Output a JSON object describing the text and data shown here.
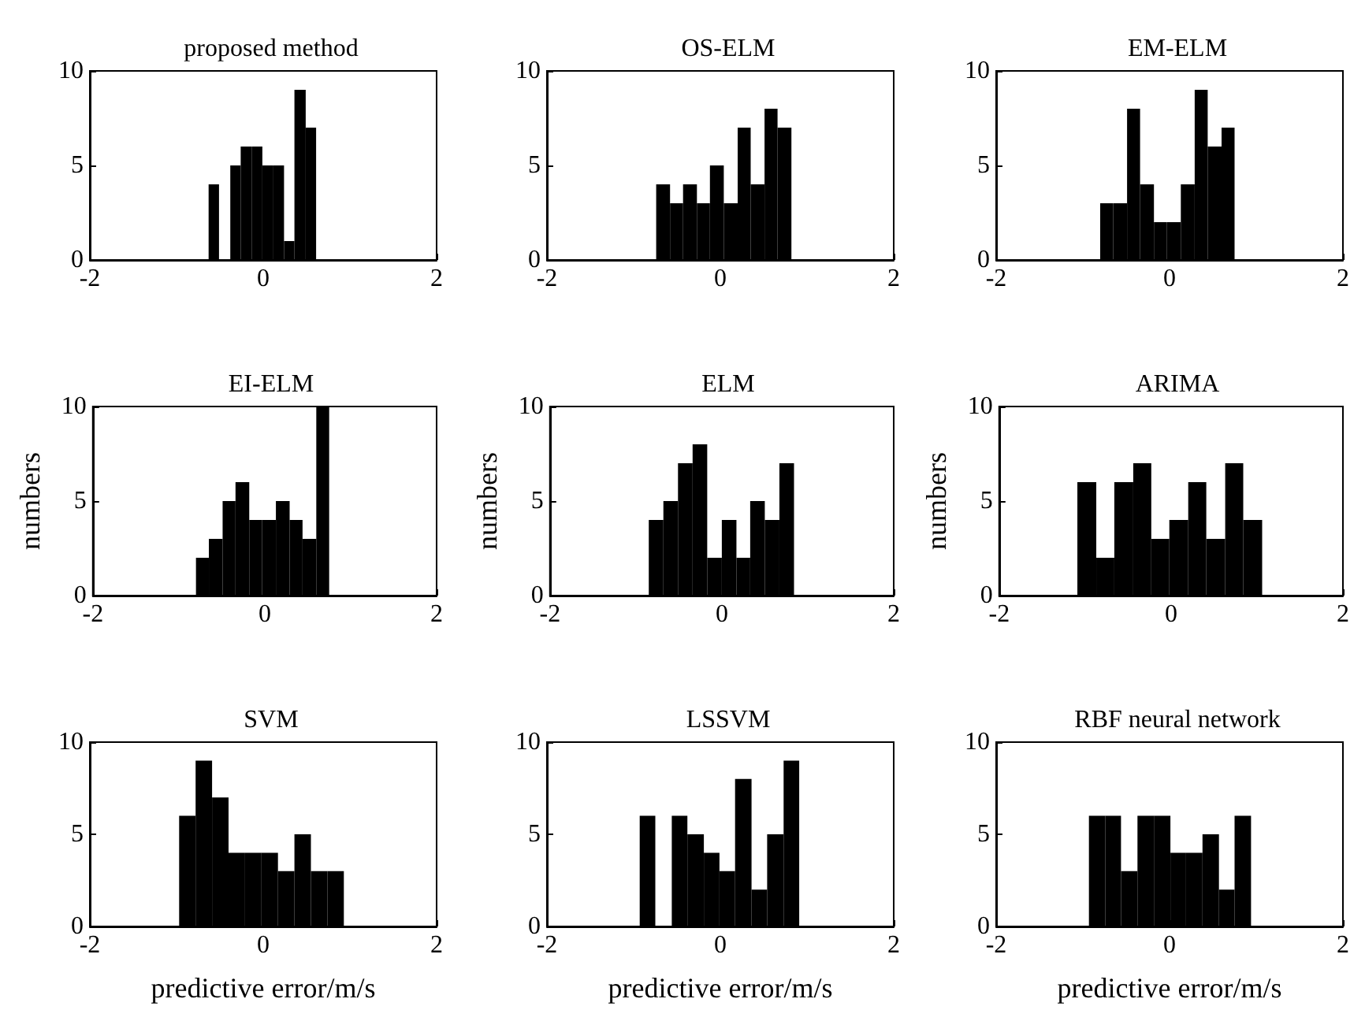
{
  "chart_data": [
    {
      "type": "histogram",
      "title": "proposed method",
      "bins": [
        -0.63,
        -0.51,
        -0.38,
        -0.26,
        -0.13,
        -0.01,
        0.11,
        0.24,
        0.36,
        0.49,
        0.61
      ],
      "values": [
        4,
        0,
        5,
        6,
        6,
        5,
        5,
        1,
        9,
        7
      ],
      "color": "#000000",
      "xlim": [
        -2,
        2
      ],
      "ylim": [
        0,
        10
      ],
      "xticks": [
        -2,
        0,
        2
      ],
      "yticks": [
        0,
        5,
        10
      ]
    },
    {
      "type": "histogram",
      "title": "OS-ELM",
      "bins": [
        -0.74,
        -0.58,
        -0.43,
        -0.27,
        -0.12,
        0.04,
        0.2,
        0.35,
        0.51,
        0.66,
        0.82
      ],
      "values": [
        4,
        3,
        4,
        3,
        5,
        3,
        7,
        4,
        8,
        7
      ],
      "color": "#000000",
      "xlim": [
        -2,
        2
      ],
      "ylim": [
        0,
        10
      ],
      "xticks": [
        -2,
        0,
        2
      ],
      "yticks": [
        0,
        5,
        10
      ]
    },
    {
      "type": "histogram",
      "title": "EM-ELM",
      "bins": [
        -0.8,
        -0.65,
        -0.49,
        -0.34,
        -0.18,
        -0.03,
        0.13,
        0.29,
        0.44,
        0.6,
        0.75
      ],
      "values": [
        3,
        3,
        8,
        4,
        2,
        2,
        4,
        9,
        6,
        7
      ],
      "color": "#000000",
      "xlim": [
        -2,
        2
      ],
      "ylim": [
        0,
        10
      ],
      "xticks": [
        -2,
        0,
        2
      ],
      "yticks": [
        0,
        5,
        10
      ]
    },
    {
      "type": "histogram",
      "title": "EI-ELM",
      "ylabel": "numbers",
      "bins": [
        -0.8,
        -0.65,
        -0.49,
        -0.34,
        -0.18,
        -0.03,
        0.13,
        0.29,
        0.44,
        0.6,
        0.75
      ],
      "values": [
        2,
        3,
        5,
        6,
        4,
        4,
        5,
        4,
        3,
        10
      ],
      "color": "#000000",
      "xlim": [
        -2,
        2
      ],
      "ylim": [
        0,
        10
      ],
      "xticks": [
        -2,
        0,
        2
      ],
      "yticks": [
        0,
        5,
        10
      ]
    },
    {
      "type": "histogram",
      "title": "ELM",
      "ylabel": "numbers",
      "bins": [
        -0.85,
        -0.68,
        -0.51,
        -0.34,
        -0.17,
        0,
        0.17,
        0.33,
        0.5,
        0.67,
        0.84
      ],
      "values": [
        4,
        5,
        7,
        8,
        2,
        4,
        2,
        5,
        4,
        7
      ],
      "color": "#000000",
      "xlim": [
        -2,
        2
      ],
      "ylim": [
        0,
        10
      ],
      "xticks": [
        -2,
        0,
        2
      ],
      "yticks": [
        0,
        5,
        10
      ]
    },
    {
      "type": "histogram",
      "title": "ARIMA",
      "ylabel": "numbers",
      "bins": [
        -1.09,
        -0.87,
        -0.66,
        -0.44,
        -0.23,
        -0.02,
        0.2,
        0.41,
        0.63,
        0.84,
        1.06
      ],
      "values": [
        6,
        2,
        6,
        7,
        3,
        4,
        6,
        3,
        7,
        4
      ],
      "color": "#000000",
      "xlim": [
        -2,
        2
      ],
      "ylim": [
        0,
        10
      ],
      "xticks": [
        -2,
        0,
        2
      ],
      "yticks": [
        0,
        5,
        10
      ]
    },
    {
      "type": "histogram",
      "title": "SVM",
      "xlabel": "predictive error/m/s",
      "bins": [
        -0.97,
        -0.78,
        -0.59,
        -0.4,
        -0.21,
        -0.02,
        0.17,
        0.36,
        0.55,
        0.74,
        0.93
      ],
      "values": [
        6,
        9,
        7,
        4,
        4,
        4,
        3,
        5,
        3,
        3
      ],
      "color": "#000000",
      "xlim": [
        -2,
        2
      ],
      "ylim": [
        0,
        10
      ],
      "xticks": [
        -2,
        0,
        2
      ],
      "yticks": [
        0,
        5,
        10
      ]
    },
    {
      "type": "histogram",
      "title": "LSSVM",
      "xlabel": "predictive error/m/s",
      "bins": [
        -0.93,
        -0.75,
        -0.56,
        -0.38,
        -0.19,
        -0.01,
        0.17,
        0.36,
        0.54,
        0.73,
        0.91
      ],
      "values": [
        6,
        0,
        6,
        5,
        4,
        3,
        8,
        2,
        5,
        9
      ],
      "color": "#000000",
      "xlim": [
        -2,
        2
      ],
      "ylim": [
        0,
        10
      ],
      "xticks": [
        -2,
        0,
        2
      ],
      "yticks": [
        0,
        5,
        10
      ]
    },
    {
      "type": "histogram",
      "title": "RBF neural network",
      "xlabel": "predictive error/m/s",
      "bins": [
        -0.93,
        -0.74,
        -0.56,
        -0.37,
        -0.18,
        0.01,
        0.19,
        0.38,
        0.57,
        0.75,
        0.94
      ],
      "values": [
        6,
        6,
        3,
        6,
        6,
        4,
        4,
        5,
        2,
        6
      ],
      "color": "#000000",
      "xlim": [
        -2,
        2
      ],
      "ylim": [
        0,
        10
      ],
      "xticks": [
        -2,
        0,
        2
      ],
      "yticks": [
        0,
        5,
        10
      ]
    }
  ]
}
